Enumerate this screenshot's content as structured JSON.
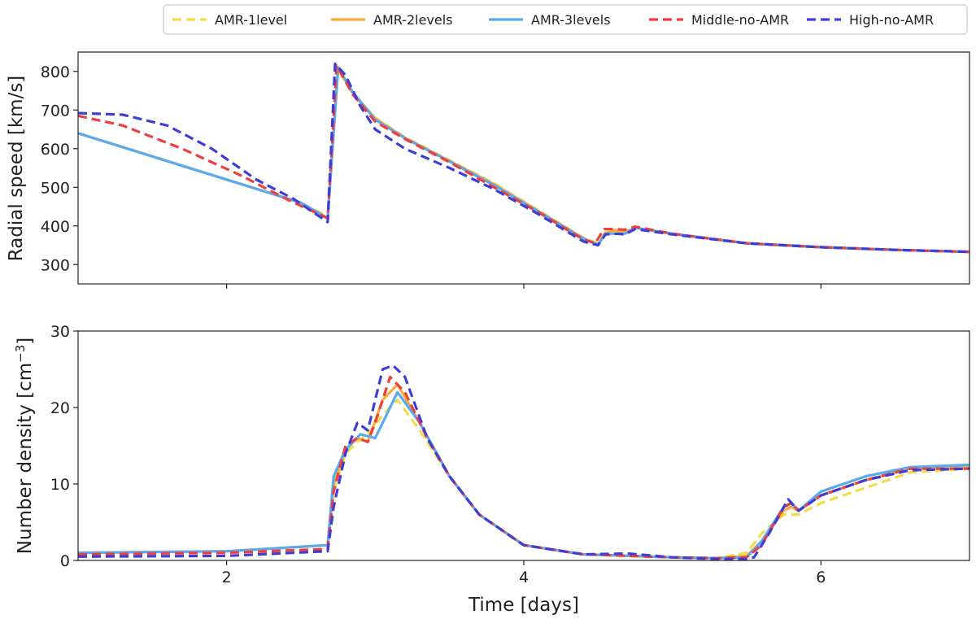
{
  "chart_data": [
    {
      "type": "line",
      "panel": "top",
      "title": "",
      "xlabel": "",
      "ylabel": "Radial speed [km/s]",
      "xlim": [
        1,
        7
      ],
      "ylim": [
        250,
        850
      ],
      "xticks": [
        2,
        4,
        6
      ],
      "xtick_labels": [
        "",
        "",
        ""
      ],
      "yticks": [
        300,
        400,
        500,
        600,
        700,
        800
      ],
      "ytick_labels": [
        "300",
        "400",
        "500",
        "600",
        "700",
        "800"
      ],
      "grid": false,
      "series": [
        {
          "name": "AMR-1level",
          "color": "#f2dc4a",
          "dash": true,
          "x": [
            1.0,
            1.5,
            2.0,
            2.5,
            2.68,
            2.75,
            2.85,
            3.0,
            3.2,
            3.5,
            3.8,
            4.1,
            4.4,
            4.5,
            4.55,
            4.62,
            4.68,
            4.75,
            5.0,
            5.5,
            6.0,
            6.5,
            7.0
          ],
          "y": [
            640,
            580,
            520,
            460,
            425,
            805,
            740,
            680,
            630,
            570,
            510,
            440,
            370,
            355,
            385,
            390,
            385,
            395,
            380,
            355,
            345,
            338,
            333
          ]
        },
        {
          "name": "AMR-2levels",
          "color": "#f7ac3e",
          "dash": false,
          "x": [
            1.0,
            1.5,
            2.0,
            2.5,
            2.68,
            2.75,
            2.85,
            3.0,
            3.2,
            3.5,
            3.8,
            4.1,
            4.4,
            4.5,
            4.55,
            4.62,
            4.68,
            4.75,
            5.0,
            5.5,
            6.0,
            6.5,
            7.0
          ],
          "y": [
            640,
            580,
            520,
            460,
            420,
            808,
            745,
            678,
            628,
            568,
            508,
            438,
            368,
            352,
            382,
            388,
            383,
            395,
            380,
            355,
            345,
            338,
            333
          ]
        },
        {
          "name": "AMR-3levels",
          "color": "#5aaaf0",
          "dash": false,
          "x": [
            1.0,
            1.5,
            2.0,
            2.5,
            2.68,
            2.75,
            2.85,
            3.0,
            3.2,
            3.5,
            3.8,
            4.1,
            4.4,
            4.5,
            4.55,
            4.62,
            4.68,
            4.75,
            5.0,
            5.5,
            6.0,
            6.5,
            7.0
          ],
          "y": [
            640,
            580,
            520,
            460,
            420,
            810,
            745,
            675,
            627,
            567,
            505,
            437,
            367,
            352,
            380,
            380,
            380,
            395,
            380,
            355,
            345,
            338,
            333
          ]
        },
        {
          "name": "Middle-no-AMR",
          "color": "#ee3f3f",
          "dash": true,
          "x": [
            1.0,
            1.3,
            1.7,
            2.1,
            2.4,
            2.68,
            2.74,
            2.85,
            3.0,
            3.2,
            3.5,
            3.8,
            4.1,
            4.4,
            4.48,
            4.54,
            4.62,
            4.68,
            4.75,
            5.0,
            5.5,
            6.0,
            6.5,
            7.0
          ],
          "y": [
            685,
            660,
            600,
            530,
            470,
            420,
            815,
            740,
            670,
            625,
            565,
            500,
            435,
            365,
            355,
            392,
            392,
            390,
            398,
            380,
            355,
            345,
            338,
            333
          ]
        },
        {
          "name": "High-no-AMR",
          "color": "#3e3ed6",
          "dash": true,
          "x": [
            1.0,
            1.3,
            1.6,
            1.9,
            2.2,
            2.45,
            2.68,
            2.73,
            2.8,
            2.9,
            3.0,
            3.2,
            3.5,
            3.8,
            4.1,
            4.4,
            4.5,
            4.55,
            4.62,
            4.68,
            4.75,
            5.0,
            5.5,
            6.0,
            6.5,
            7.0
          ],
          "y": [
            692,
            688,
            660,
            600,
            520,
            470,
            410,
            820,
            790,
            710,
            650,
            600,
            550,
            495,
            430,
            360,
            350,
            378,
            380,
            378,
            392,
            378,
            355,
            345,
            338,
            333
          ]
        }
      ]
    },
    {
      "type": "line",
      "panel": "bottom",
      "title": "",
      "xlabel": "Time [days]",
      "ylabel": "Number density [cm$^{-3}$]",
      "xlim": [
        1,
        7
      ],
      "ylim": [
        0,
        30
      ],
      "xticks": [
        2,
        4,
        6
      ],
      "xtick_labels": [
        "2",
        "4",
        "6"
      ],
      "yticks": [
        0,
        10,
        20,
        30
      ],
      "ytick_labels": [
        "0",
        "10",
        "20",
        "30"
      ],
      "grid": false,
      "series": [
        {
          "name": "AMR-1level",
          "color": "#f2dc4a",
          "dash": true,
          "x": [
            1.0,
            2.0,
            2.68,
            2.72,
            2.8,
            2.88,
            2.95,
            3.05,
            3.15,
            3.3,
            3.5,
            3.7,
            4.0,
            4.4,
            5.0,
            5.3,
            5.5,
            5.6,
            5.75,
            5.85,
            6.0,
            6.3,
            6.6,
            7.0
          ],
          "y": [
            1.0,
            1.2,
            2.0,
            9,
            14,
            15.5,
            16.5,
            19,
            21,
            17,
            11,
            6,
            2.0,
            0.8,
            0.4,
            0.3,
            1.0,
            3.5,
            6.0,
            6.0,
            7.5,
            9.5,
            11.5,
            12.0
          ]
        },
        {
          "name": "AMR-2levels",
          "color": "#f7ac3e",
          "dash": false,
          "x": [
            1.0,
            2.0,
            2.68,
            2.72,
            2.8,
            2.88,
            2.95,
            3.05,
            3.15,
            3.3,
            3.5,
            3.7,
            4.0,
            4.4,
            5.0,
            5.3,
            5.5,
            5.6,
            5.75,
            5.8,
            5.85,
            6.0,
            6.3,
            6.6,
            7.0
          ],
          "y": [
            1.0,
            1.2,
            2.0,
            10,
            14.5,
            16,
            15.5,
            21,
            23,
            18,
            11,
            6,
            2.0,
            0.8,
            0.4,
            0.3,
            0.6,
            2.5,
            6.5,
            7.0,
            6.5,
            8.5,
            10.5,
            12.0,
            12.2
          ]
        },
        {
          "name": "AMR-3levels",
          "color": "#5aaaf0",
          "dash": false,
          "x": [
            1.0,
            2.0,
            2.68,
            2.72,
            2.8,
            2.9,
            3.0,
            3.05,
            3.15,
            3.3,
            3.5,
            3.7,
            4.0,
            4.4,
            5.0,
            5.3,
            5.5,
            5.6,
            5.75,
            5.8,
            5.85,
            6.0,
            6.3,
            6.6,
            7.0
          ],
          "y": [
            1.0,
            1.2,
            2.0,
            11,
            14.5,
            16.5,
            16,
            18,
            22,
            18,
            11,
            6,
            2.0,
            0.8,
            0.4,
            0.3,
            0.4,
            2.5,
            7.0,
            7.5,
            6.5,
            9.0,
            11.0,
            12.2,
            12.5
          ]
        },
        {
          "name": "Middle-no-AMR",
          "color": "#ee3f3f",
          "dash": true,
          "x": [
            1.0,
            2.0,
            2.68,
            2.72,
            2.8,
            2.88,
            2.95,
            3.0,
            3.1,
            3.2,
            3.35,
            3.5,
            3.7,
            4.0,
            4.4,
            5.0,
            5.3,
            5.5,
            5.6,
            5.75,
            5.8,
            5.85,
            6.0,
            6.3,
            6.6,
            7.0
          ],
          "y": [
            0.8,
            1.0,
            1.5,
            9,
            15,
            16,
            15.5,
            18,
            24,
            22,
            16,
            11,
            6,
            2.0,
            0.8,
            0.4,
            0.3,
            0.4,
            2.0,
            7.0,
            7.5,
            6.5,
            8.5,
            10.5,
            12.0,
            12.0
          ]
        },
        {
          "name": "High-no-AMR",
          "color": "#3e3ed6",
          "dash": true,
          "x": [
            1.0,
            2.0,
            2.68,
            2.72,
            2.8,
            2.88,
            2.95,
            3.05,
            3.12,
            3.2,
            3.35,
            3.5,
            3.7,
            4.0,
            4.4,
            4.7,
            5.0,
            5.3,
            5.5,
            5.55,
            5.65,
            5.78,
            5.85,
            6.0,
            6.3,
            6.6,
            7.0
          ],
          "y": [
            0.5,
            0.6,
            1.2,
            7,
            14,
            18,
            17,
            25,
            25.5,
            24,
            16,
            11,
            6,
            2.0,
            0.8,
            0.9,
            0.4,
            0.2,
            0.2,
            0.4,
            3.5,
            8.0,
            6.5,
            8.5,
            10.5,
            11.8,
            12.0
          ]
        }
      ]
    }
  ]
}
